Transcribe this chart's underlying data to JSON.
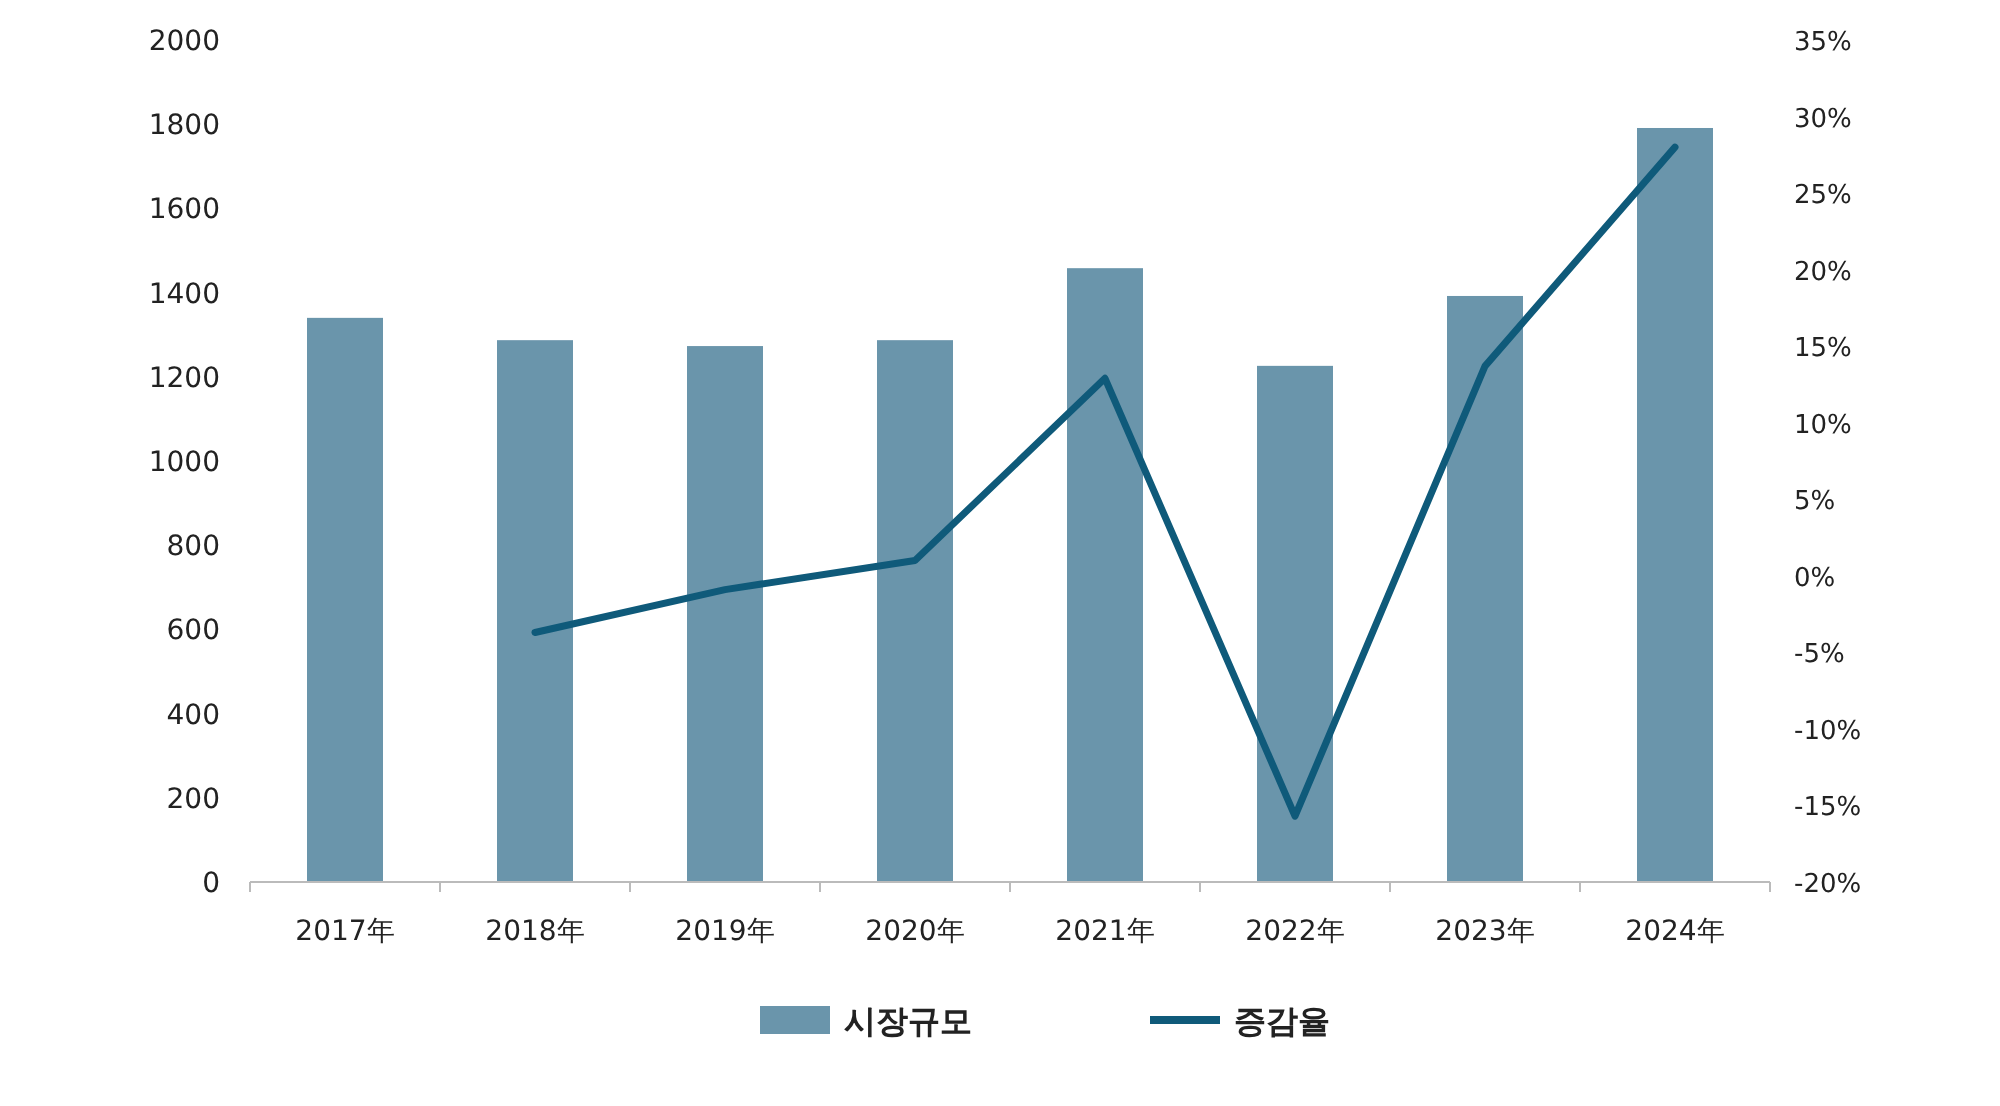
{
  "chart_data": {
    "type": "bar",
    "categories": [
      "2017年",
      "2018年",
      "2019年",
      "2020年",
      "2021年",
      "2022年",
      "2023年",
      "2024年"
    ],
    "series": [
      {
        "name": "시장규모",
        "color": "#6a95ab",
        "values": [
          1340,
          1287,
          1273,
          1287,
          1458,
          1226,
          1392,
          1791
        ]
      },
      {
        "name": "증감율",
        "type": "line",
        "axis": "y2",
        "color": "#0f5a7a",
        "values": [
          null,
          -3.7,
          -0.9,
          1.0,
          12.9,
          -15.7,
          13.7,
          28
        ]
      }
    ],
    "ylim": [
      0,
      2000
    ],
    "yticks": [
      0,
      200,
      400,
      600,
      800,
      1000,
      1200,
      1400,
      1600,
      1800,
      2000
    ],
    "y2lim": [
      -20,
      35
    ],
    "y2ticks": [
      {
        "value": -20,
        "label": "-20%"
      },
      {
        "value": -15,
        "label": "-15%"
      },
      {
        "value": -10,
        "label": "-10%"
      },
      {
        "value": -5,
        "label": "-5%"
      },
      {
        "value": 0,
        "label": "0%"
      },
      {
        "value": 5,
        "label": "5%"
      },
      {
        "value": 10,
        "label": "10%"
      },
      {
        "value": 15,
        "label": "15%"
      },
      {
        "value": 20,
        "label": "20%"
      },
      {
        "value": 25,
        "label": "25%"
      },
      {
        "value": 30,
        "label": "30%"
      },
      {
        "value": 35,
        "label": "35%"
      }
    ],
    "legend": "bottom"
  }
}
